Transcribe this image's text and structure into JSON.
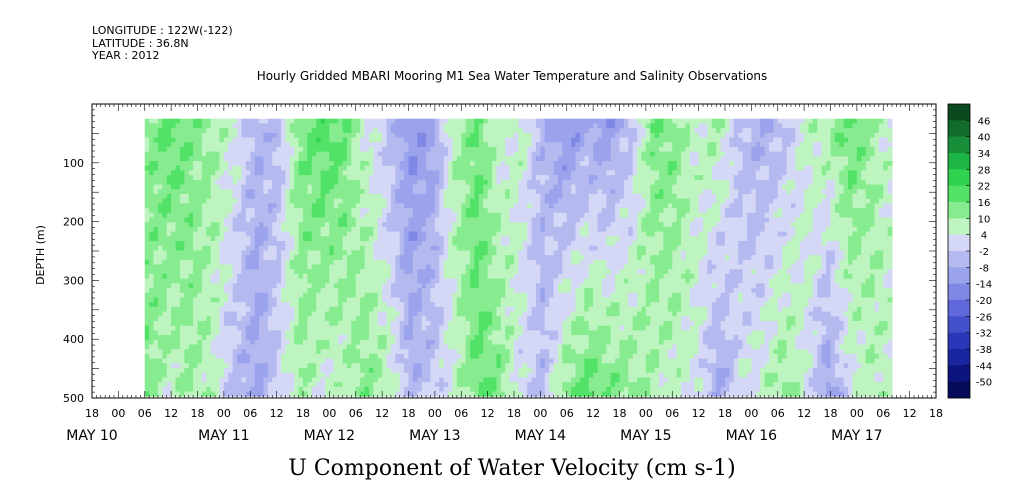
{
  "header": {
    "longitude": "LONGITUDE : 122W(-122)",
    "latitude": "LATITUDE : 36.8N",
    "year": "YEAR : 2012"
  },
  "title": "Hourly Gridded MBARI Mooring M1 Sea Water Temperature and Salinity Observations",
  "bottom_title": "U Component of Water Velocity (cm s-1)",
  "chart_data": {
    "type": "heatmap",
    "variable": "U Component of Water Velocity",
    "units": "cm s-1",
    "ylabel": "DEPTH (m)",
    "y_reversed": true,
    "ylim": [
      0,
      500
    ],
    "y_ticks": [
      100,
      200,
      300,
      400,
      500
    ],
    "x_hour_ticks": [
      "18",
      "00",
      "06",
      "12",
      "18",
      "00",
      "06",
      "12",
      "18",
      "00",
      "06",
      "12",
      "18",
      "00",
      "06",
      "12",
      "18",
      "00",
      "06",
      "12",
      "18",
      "00",
      "06",
      "12",
      "18",
      "00",
      "06",
      "12",
      "18",
      "00",
      "06",
      "12",
      "18"
    ],
    "x_day_labels": [
      "MAY 10",
      "MAY 11",
      "MAY 12",
      "MAY 13",
      "MAY 14",
      "MAY 15",
      "MAY 16",
      "MAY 17"
    ],
    "colorbar_levels": [
      "46",
      "40",
      "34",
      "28",
      "22",
      "16",
      "10",
      "4",
      "-2",
      "-8",
      "-14",
      "-20",
      "-26",
      "-32",
      "-38",
      "-44",
      "-50"
    ],
    "colorbar_colors": [
      "#0b4a1e",
      "#116b2a",
      "#178f38",
      "#1db545",
      "#2fd350",
      "#52e268",
      "#86ec8f",
      "#bdf4bf",
      "#d4d8f6",
      "#b4baf0",
      "#9ba3ec",
      "#7f88e4",
      "#5f68da",
      "#4350cc",
      "#2c36b8",
      "#1a25a0",
      "#0c1480",
      "#050a5a"
    ],
    "data_start_hour": 30,
    "data_end_hour": 200,
    "x_range_hours": [
      18,
      210
    ],
    "depth_range_data": [
      25,
      490
    ],
    "column_profiles": {
      "hours": [
        30,
        35,
        40,
        45,
        50,
        55,
        60,
        65,
        70,
        75,
        80,
        85,
        90,
        95,
        100,
        105,
        110,
        115,
        120,
        125,
        130,
        135,
        140,
        145,
        150,
        155,
        160,
        165,
        170,
        175,
        180,
        185,
        190,
        195,
        200
      ],
      "u_shallow": [
        12,
        18,
        14,
        10,
        4,
        -6,
        -4,
        14,
        20,
        16,
        4,
        -4,
        -14,
        -10,
        8,
        16,
        4,
        6,
        -6,
        -14,
        -10,
        -12,
        -4,
        14,
        14,
        6,
        10,
        -4,
        -8,
        -4,
        6,
        10,
        18,
        10,
        4
      ],
      "u_deep": [
        14,
        6,
        10,
        6,
        -4,
        -10,
        0,
        10,
        4,
        6,
        14,
        8,
        -6,
        -2,
        6,
        16,
        14,
        2,
        -4,
        12,
        18,
        16,
        12,
        8,
        6,
        4,
        -10,
        2,
        6,
        12,
        4,
        -12,
        2,
        8,
        6
      ]
    }
  }
}
